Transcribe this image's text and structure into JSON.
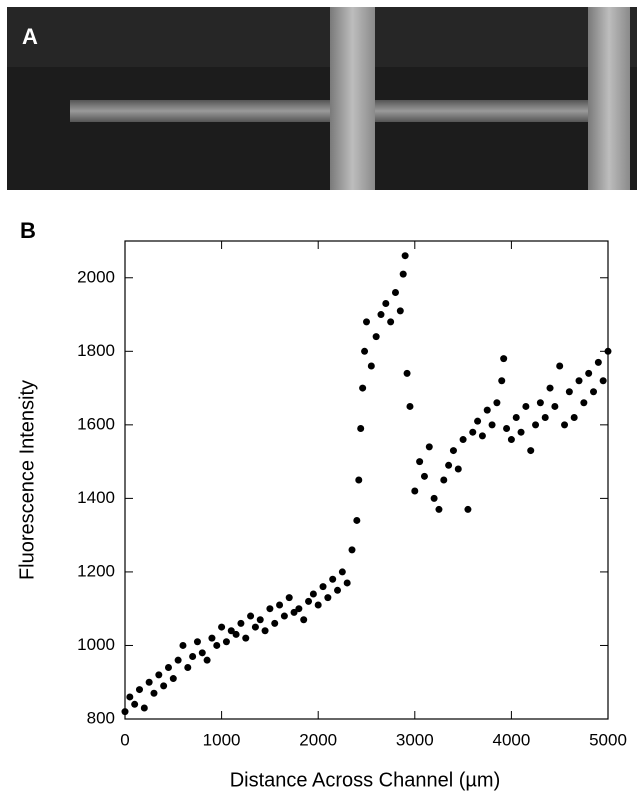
{
  "image_panel": {
    "label": "A"
  },
  "chart_data": {
    "type": "scatter",
    "panel_label": "B",
    "x_label": "Distance Across Channel (µm)",
    "y_label": "Fluorescence Intensity",
    "xlim": [
      0,
      5000
    ],
    "ylim": [
      800,
      2100
    ],
    "xticks": [
      0,
      1000,
      2000,
      3000,
      4000,
      5000
    ],
    "yticks": [
      800,
      1000,
      1200,
      1400,
      1600,
      1800,
      2000
    ],
    "color": "#000000",
    "x": [
      0,
      50,
      100,
      150,
      200,
      250,
      300,
      350,
      400,
      450,
      500,
      550,
      600,
      650,
      700,
      750,
      800,
      850,
      900,
      950,
      1000,
      1050,
      1100,
      1150,
      1200,
      1250,
      1300,
      1350,
      1400,
      1450,
      1500,
      1550,
      1600,
      1650,
      1700,
      1750,
      1800,
      1850,
      1900,
      1950,
      2000,
      2050,
      2100,
      2150,
      2200,
      2250,
      2300,
      2350,
      2400,
      2420,
      2440,
      2460,
      2480,
      2500,
      2550,
      2600,
      2650,
      2700,
      2750,
      2800,
      2850,
      2880,
      2900,
      2920,
      2950,
      3000,
      3050,
      3100,
      3150,
      3200,
      3250,
      3300,
      3350,
      3400,
      3450,
      3500,
      3550,
      3600,
      3650,
      3700,
      3750,
      3800,
      3850,
      3900,
      3920,
      3950,
      4000,
      4050,
      4100,
      4150,
      4200,
      4250,
      4300,
      4350,
      4400,
      4450,
      4500,
      4550,
      4600,
      4650,
      4700,
      4750,
      4800,
      4850,
      4900,
      4950,
      5000
    ],
    "y": [
      820,
      860,
      840,
      880,
      830,
      900,
      870,
      920,
      890,
      940,
      910,
      960,
      1000,
      940,
      970,
      1010,
      980,
      960,
      1020,
      1000,
      1050,
      1010,
      1040,
      1030,
      1060,
      1020,
      1080,
      1050,
      1070,
      1040,
      1100,
      1060,
      1110,
      1080,
      1130,
      1090,
      1100,
      1070,
      1120,
      1140,
      1110,
      1160,
      1130,
      1180,
      1150,
      1200,
      1170,
      1260,
      1340,
      1450,
      1590,
      1700,
      1800,
      1880,
      1760,
      1840,
      1900,
      1930,
      1880,
      1960,
      1910,
      2010,
      2060,
      1740,
      1650,
      1420,
      1500,
      1460,
      1540,
      1400,
      1370,
      1450,
      1490,
      1530,
      1480,
      1560,
      1370,
      1580,
      1610,
      1570,
      1640,
      1600,
      1660,
      1720,
      1780,
      1590,
      1560,
      1620,
      1580,
      1650,
      1530,
      1600,
      1660,
      1620,
      1700,
      1650,
      1760,
      1600,
      1690,
      1620,
      1720,
      1660,
      1740,
      1690,
      1770,
      1720,
      1800
    ]
  }
}
